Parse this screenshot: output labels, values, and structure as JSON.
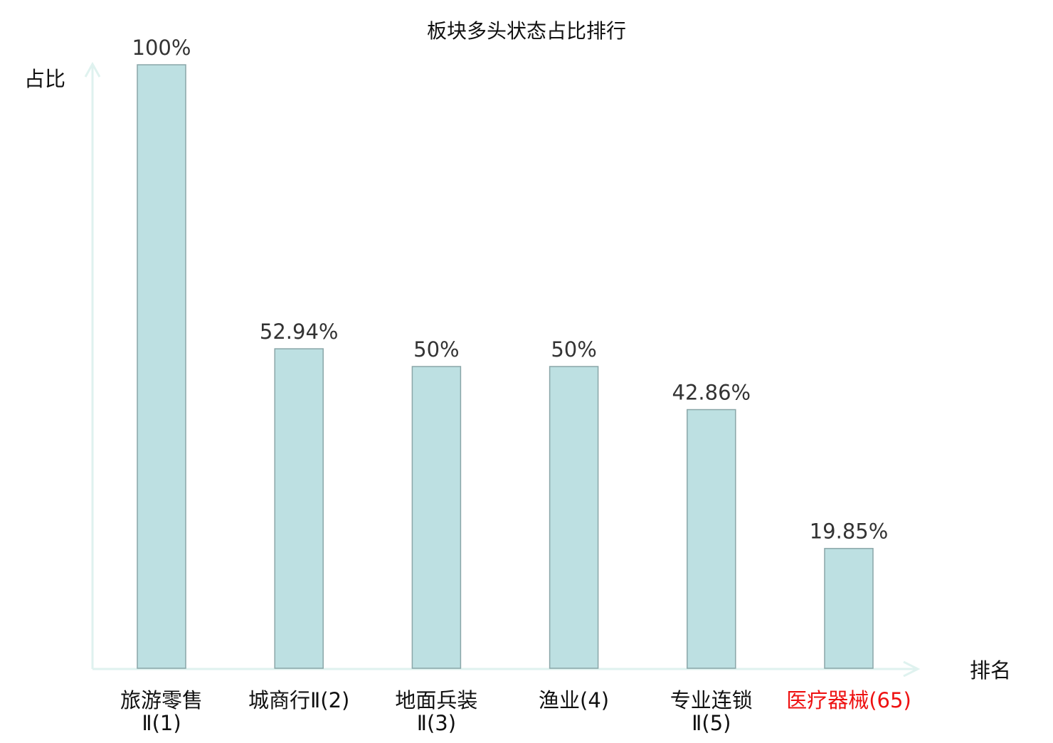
{
  "chart_data": {
    "type": "bar",
    "title": "板块多头状态占比排行",
    "xlabel": "排名",
    "ylabel": "占比",
    "categories": [
      "旅游零售Ⅱ(1)",
      "城商行Ⅱ(2)",
      "地面兵装Ⅱ(3)",
      "渔业(4)",
      "专业连锁Ⅱ(5)",
      "医疗器械(65)"
    ],
    "values": [
      100,
      52.94,
      50,
      50,
      42.86,
      19.85
    ],
    "data_labels": [
      "100%",
      "52.94%",
      "50%",
      "50%",
      "42.86%",
      "19.85%"
    ],
    "highlighted_category_index": 5,
    "ylim": [
      0,
      100
    ],
    "grid": false,
    "colors": {
      "bar_fill": "#bde0e2",
      "bar_stroke": "#8aa6a8",
      "axis": "#dff2ef",
      "highlight_label": "#ee1111",
      "text": "#222222"
    }
  }
}
